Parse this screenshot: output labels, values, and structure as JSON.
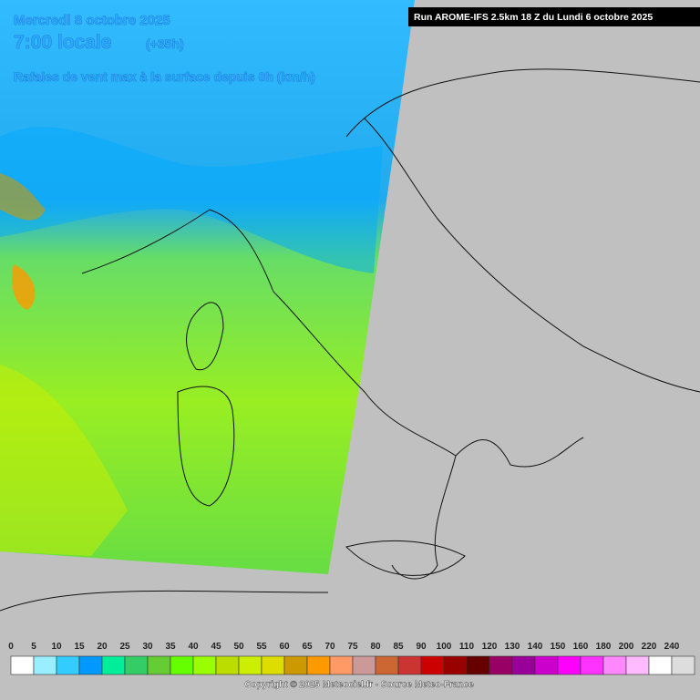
{
  "header": {
    "date": "Mercredi 8 octobre 2025",
    "time": "7:00 locale",
    "lead": "(+35h)",
    "title": "Rafales de vent max à la surface depuis 0h (km/h)",
    "run": "Run AROME-IFS 2.5km 18 Z du Lundi 6 octobre 2025"
  },
  "legend": {
    "ticks": [
      0,
      5,
      10,
      15,
      20,
      25,
      30,
      35,
      40,
      45,
      50,
      55,
      60,
      65,
      70,
      75,
      80,
      85,
      90,
      100,
      110,
      120,
      130,
      140,
      150,
      160,
      180,
      200,
      220,
      240
    ],
    "colors": [
      "#ffffff",
      "#99eeff",
      "#33ccff",
      "#0099ff",
      "#00ee99",
      "#33cc66",
      "#66cc33",
      "#66ff00",
      "#99ff00",
      "#bbdd00",
      "#ccee00",
      "#dddd00",
      "#cc9900",
      "#ff9900",
      "#ff9966",
      "#cc9999",
      "#cc6633",
      "#cc3333",
      "#cc0000",
      "#990000",
      "#660000",
      "#990066",
      "#990099",
      "#cc00cc",
      "#ff00ff",
      "#ff33ff",
      "#ff88ff",
      "#ffbbff",
      "#ffffff",
      "#dddddd"
    ]
  },
  "footer": {
    "copyright": "Copyright © 2025 Meteociel.fr - Source Meteo-France"
  }
}
